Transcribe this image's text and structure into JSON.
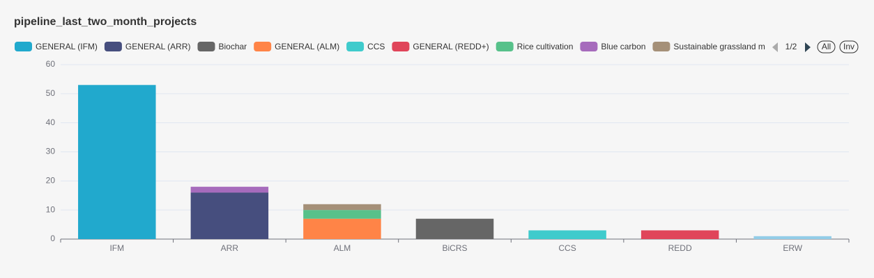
{
  "chart_data": {
    "type": "stacked_bar",
    "title": "pipeline_last_two_month_projects",
    "categories": [
      "IFM",
      "ARR",
      "ALM",
      "BiCRS",
      "CCS",
      "REDD",
      "ERW"
    ],
    "series": [
      {
        "name": "GENERAL (IFM)",
        "color": "#21a9cd",
        "values": [
          53,
          null,
          null,
          null,
          null,
          null,
          null
        ]
      },
      {
        "name": "GENERAL (ARR)",
        "color": "#464e7e",
        "values": [
          null,
          16,
          null,
          null,
          null,
          null,
          null
        ]
      },
      {
        "name": "Biochar",
        "color": "#666666",
        "values": [
          null,
          null,
          null,
          7,
          null,
          null,
          null
        ]
      },
      {
        "name": "GENERAL (ALM)",
        "color": "#ff8447",
        "values": [
          null,
          null,
          7,
          null,
          null,
          null,
          null
        ]
      },
      {
        "name": "CCS",
        "color": "#3fcbcc",
        "values": [
          null,
          null,
          null,
          null,
          3,
          null,
          null
        ]
      },
      {
        "name": "GENERAL (REDD+)",
        "color": "#e0455a",
        "values": [
          null,
          null,
          null,
          null,
          null,
          3,
          null
        ]
      },
      {
        "name": "Rice cultivation",
        "color": "#57c18a",
        "values": [
          null,
          null,
          3,
          null,
          null,
          null,
          null
        ]
      },
      {
        "name": "Blue carbon",
        "color": "#a66bbc",
        "values": [
          null,
          2,
          null,
          null,
          null,
          null,
          null
        ]
      },
      {
        "name": "Sustainable grassland m",
        "color": "#a59078",
        "values": [
          null,
          null,
          2,
          null,
          null,
          null,
          null
        ]
      },
      {
        "name": null,
        "color": "#93cde8",
        "values": [
          null,
          null,
          null,
          null,
          null,
          null,
          1
        ]
      }
    ],
    "legend_page": "1/2",
    "legend_buttons": [
      "All",
      "Inv"
    ],
    "ylim": [
      0,
      60
    ],
    "yticks": [
      0,
      10,
      20,
      30,
      40,
      50,
      60
    ],
    "grid": true
  }
}
